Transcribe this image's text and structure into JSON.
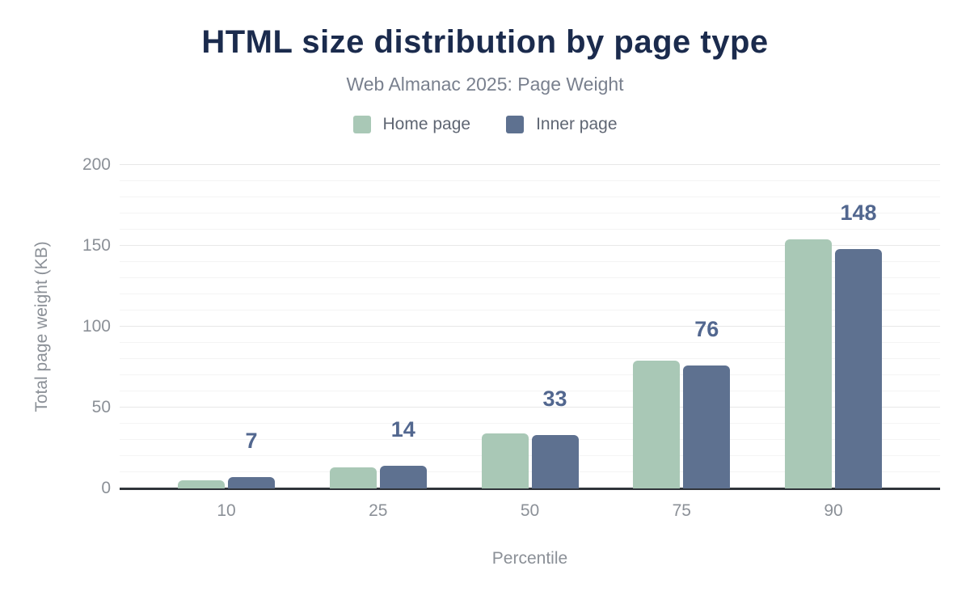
{
  "chart_data": {
    "type": "bar",
    "title": "HTML size distribution by page type",
    "subtitle": "Web Almanac 2025: Page Weight",
    "categories": [
      "10",
      "25",
      "50",
      "75",
      "90"
    ],
    "series": [
      {
        "name": "Home page",
        "color": "#a9c8b6",
        "values": [
          5,
          13,
          34,
          79,
          154
        ]
      },
      {
        "name": "Inner page",
        "color": "#5e7190",
        "values": [
          7,
          14,
          33,
          76,
          148
        ]
      }
    ],
    "data_labels": {
      "for_series": "Inner page",
      "values": [
        7,
        14,
        33,
        76,
        148
      ]
    },
    "xlabel": "Percentile",
    "ylabel": "Total page weight (KB)",
    "ylim": [
      0,
      200
    ],
    "y_ticks": [
      0,
      50,
      100,
      150,
      200
    ],
    "grid": {
      "minor_step": 10,
      "major_step": 50,
      "enabled": true
    },
    "legend_position": "top"
  },
  "colors": {
    "title": "#1b2b4d",
    "subtitle": "#79808e",
    "legend_text": "#5f6673",
    "axis_text": "#8b9097",
    "axis_line": "#30343a",
    "grid_major": "#e8e8e8",
    "grid_minor": "#f4f4f4",
    "home_page": "#a9c8b6",
    "inner_page": "#5e7190",
    "data_label": "#52678f",
    "background": "#ffffff"
  }
}
